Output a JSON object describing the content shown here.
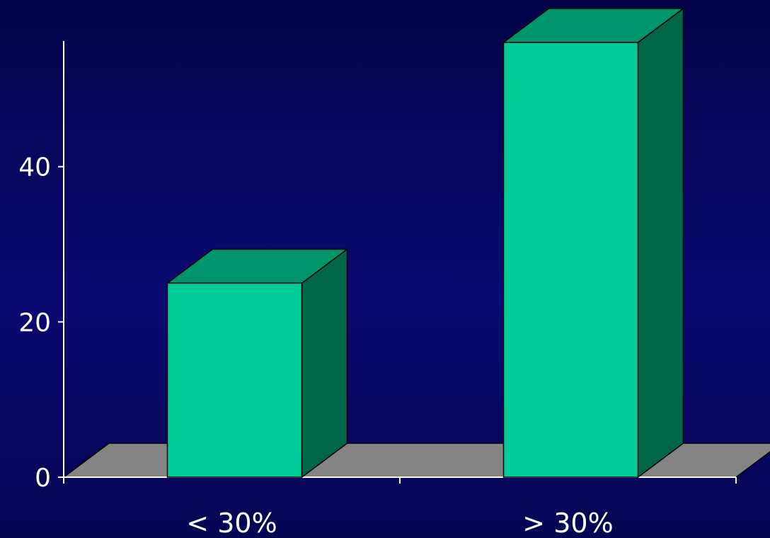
{
  "chart_data": {
    "type": "bar",
    "categories": [
      "< 30%",
      "> 30%"
    ],
    "values": [
      25,
      56
    ],
    "title": "",
    "xlabel": "",
    "ylabel": "",
    "ylim": [
      0,
      56
    ],
    "yticks": [
      0,
      20,
      40
    ],
    "grid": false,
    "three_d": true,
    "colors": {
      "bar_front": "#00cc99",
      "bar_top": "#00956b",
      "bar_side": "#00664a",
      "floor": "#848484",
      "axis": "#ffffff",
      "text": "#ffffff"
    }
  }
}
